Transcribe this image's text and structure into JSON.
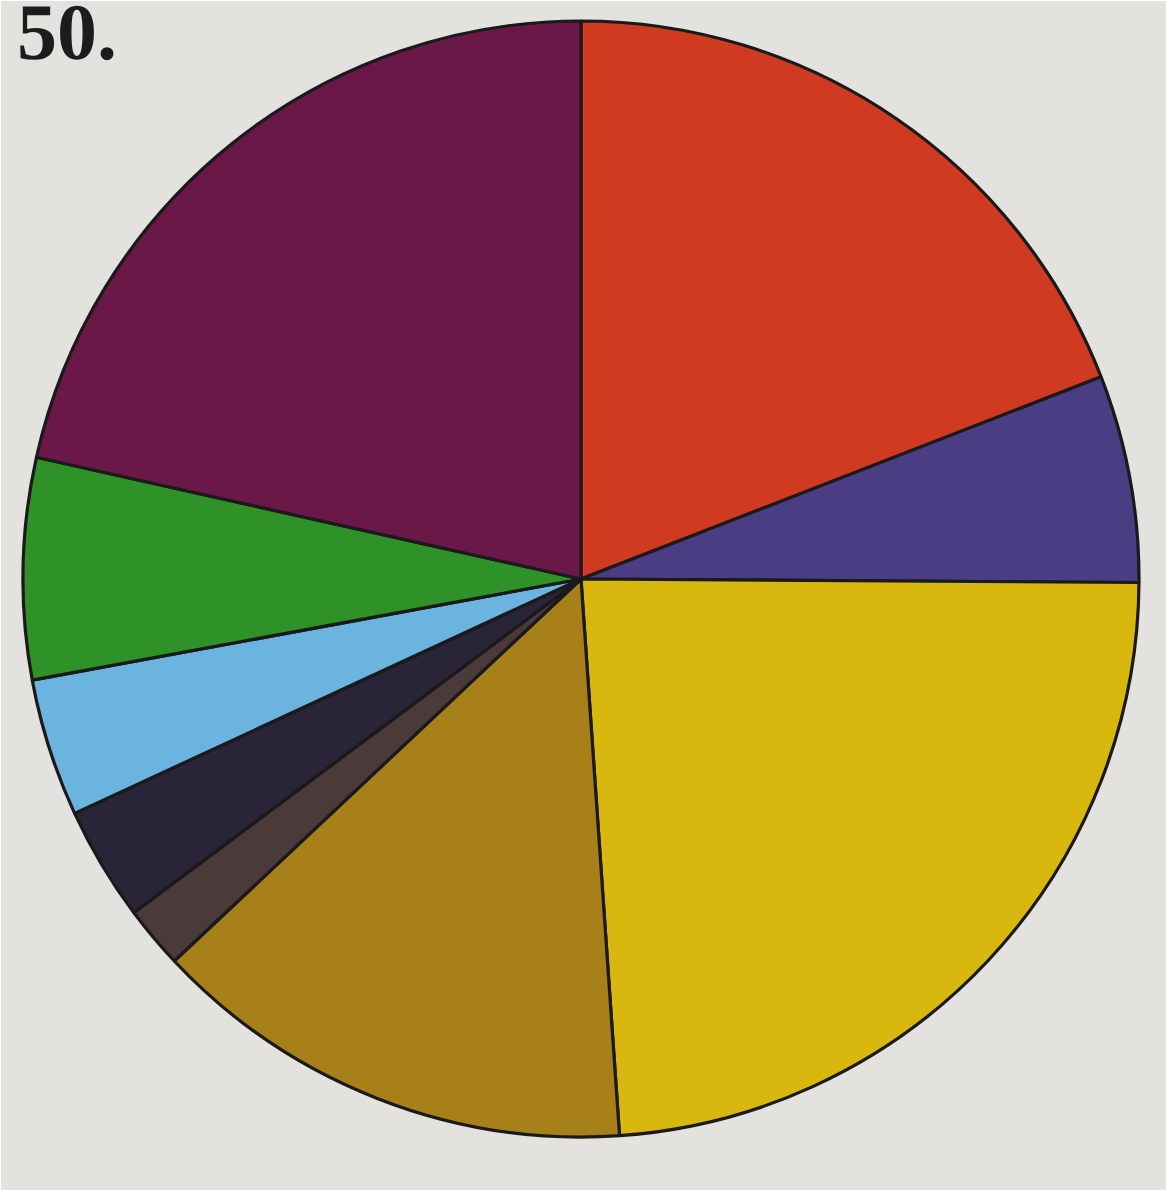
{
  "chart_data": {
    "type": "pie",
    "title": "50.",
    "categories": [
      null,
      null,
      null,
      null,
      null,
      null,
      null,
      null,
      null
    ],
    "values": [
      19.1,
      6.0,
      23.8,
      14.1,
      1.8,
      3.3,
      4.0,
      6.4,
      21.5
    ],
    "colors": [
      "#d03a20",
      "#4a3d84",
      "#d8b80e",
      "#a8801a",
      "#4a3a3a",
      "#2a2438",
      "#6cb4e0",
      "#2e9228",
      "#6a1848"
    ]
  }
}
